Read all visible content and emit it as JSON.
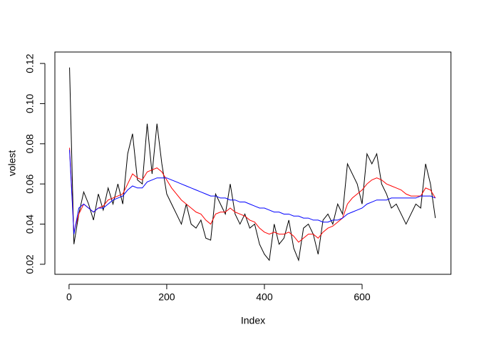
{
  "chart_data": {
    "type": "line",
    "xlabel": "Index",
    "ylabel": "volest",
    "x": [
      1,
      10,
      20,
      30,
      40,
      50,
      60,
      70,
      80,
      90,
      100,
      110,
      120,
      130,
      140,
      150,
      160,
      170,
      180,
      190,
      200,
      210,
      220,
      230,
      240,
      250,
      260,
      270,
      280,
      290,
      300,
      310,
      320,
      330,
      340,
      350,
      360,
      370,
      380,
      390,
      400,
      410,
      420,
      430,
      440,
      450,
      460,
      470,
      480,
      490,
      500,
      510,
      520,
      530,
      540,
      550,
      560,
      570,
      580,
      590,
      600,
      610,
      620,
      630,
      640,
      650,
      660,
      670,
      680,
      690,
      700,
      710,
      720,
      730,
      740,
      750
    ],
    "series": [
      {
        "color": "#000000",
        "values": [
          0.118,
          0.03,
          0.045,
          0.056,
          0.05,
          0.042,
          0.055,
          0.047,
          0.058,
          0.05,
          0.06,
          0.05,
          0.075,
          0.085,
          0.062,
          0.06,
          0.09,
          0.065,
          0.09,
          0.07,
          0.055,
          0.05,
          0.045,
          0.04,
          0.05,
          0.04,
          0.038,
          0.042,
          0.033,
          0.032,
          0.055,
          0.05,
          0.045,
          0.06,
          0.045,
          0.04,
          0.045,
          0.038,
          0.04,
          0.03,
          0.025,
          0.022,
          0.04,
          0.03,
          0.033,
          0.042,
          0.028,
          0.022,
          0.038,
          0.04,
          0.035,
          0.025,
          0.042,
          0.045,
          0.04,
          0.05,
          0.045,
          0.07,
          0.065,
          0.06,
          0.05,
          0.075,
          0.07,
          0.075,
          0.06,
          0.055,
          0.048,
          0.05,
          0.045,
          0.04,
          0.045,
          0.05,
          0.048,
          0.07,
          0.06,
          0.043
        ]
      },
      {
        "color": "#ff0000",
        "values": [
          0.078,
          0.036,
          0.045,
          0.05,
          0.048,
          0.046,
          0.048,
          0.049,
          0.052,
          0.053,
          0.054,
          0.055,
          0.06,
          0.065,
          0.063,
          0.062,
          0.066,
          0.067,
          0.068,
          0.066,
          0.062,
          0.058,
          0.055,
          0.052,
          0.05,
          0.048,
          0.046,
          0.045,
          0.042,
          0.04,
          0.045,
          0.046,
          0.046,
          0.048,
          0.046,
          0.045,
          0.044,
          0.042,
          0.041,
          0.038,
          0.036,
          0.035,
          0.036,
          0.035,
          0.035,
          0.036,
          0.034,
          0.031,
          0.033,
          0.035,
          0.035,
          0.033,
          0.036,
          0.038,
          0.039,
          0.041,
          0.043,
          0.05,
          0.053,
          0.055,
          0.057,
          0.06,
          0.062,
          0.063,
          0.062,
          0.06,
          0.059,
          0.058,
          0.057,
          0.055,
          0.054,
          0.054,
          0.054,
          0.058,
          0.057,
          0.053
        ]
      },
      {
        "color": "#0000ff",
        "values": [
          0.077,
          0.035,
          0.048,
          0.05,
          0.048,
          0.046,
          0.048,
          0.048,
          0.05,
          0.052,
          0.053,
          0.054,
          0.057,
          0.059,
          0.058,
          0.058,
          0.061,
          0.062,
          0.063,
          0.063,
          0.063,
          0.062,
          0.061,
          0.06,
          0.059,
          0.058,
          0.057,
          0.056,
          0.055,
          0.054,
          0.054,
          0.053,
          0.053,
          0.052,
          0.052,
          0.051,
          0.051,
          0.05,
          0.049,
          0.048,
          0.048,
          0.047,
          0.046,
          0.046,
          0.045,
          0.045,
          0.044,
          0.044,
          0.043,
          0.043,
          0.042,
          0.042,
          0.041,
          0.041,
          0.042,
          0.042,
          0.043,
          0.045,
          0.046,
          0.047,
          0.048,
          0.05,
          0.051,
          0.052,
          0.052,
          0.052,
          0.053,
          0.053,
          0.053,
          0.053,
          0.053,
          0.053,
          0.054,
          0.054,
          0.054,
          0.053
        ]
      }
    ],
    "xlim": [
      -29,
      782
    ],
    "xticks": [
      0,
      200,
      400,
      600
    ],
    "ylim": [
      0.015,
      0.1257
    ],
    "yticks": [
      0.02,
      0.04,
      0.06,
      0.08,
      {
        "value": 0.1,
        "label": "0.10"
      },
      0.12
    ]
  }
}
